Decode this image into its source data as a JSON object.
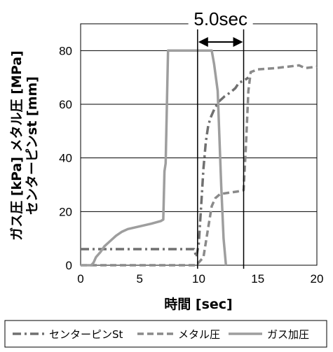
{
  "chart_data": {
    "type": "line",
    "xlabel": "時間 [sec]",
    "ylabel_line1": "ガス圧 [kPa] メタル圧 [MPa]",
    "ylabel_line2": "センターピンst [mm]",
    "xlim": [
      0,
      20
    ],
    "ylim": [
      0,
      90
    ],
    "xticks": [
      "0",
      "5",
      "10",
      "15",
      "20"
    ],
    "yticks": [
      "0",
      "20",
      "40",
      "60",
      "80"
    ],
    "grid": "horizontal",
    "legend_position": "bottom",
    "annotation": {
      "text": "5.0sec",
      "x_start": 9.9,
      "x_end": 13.8
    },
    "series": [
      {
        "name": "センターピンSt",
        "color": "#707070",
        "dash": "dashdot",
        "points": [
          [
            0,
            6
          ],
          [
            9.6,
            6
          ],
          [
            9.8,
            3
          ],
          [
            10.0,
            8
          ],
          [
            10.2,
            22
          ],
          [
            10.4,
            36
          ],
          [
            10.6,
            46
          ],
          [
            10.8,
            52
          ],
          [
            11.0,
            55
          ],
          [
            11.3,
            58
          ],
          [
            11.7,
            61
          ],
          [
            12.2,
            63
          ],
          [
            12.7,
            64.5
          ],
          [
            13.1,
            66
          ],
          [
            13.4,
            68
          ],
          [
            13.9,
            69
          ],
          [
            14.2,
            70
          ]
        ]
      },
      {
        "name": "メタル圧",
        "color": "#8a8a8a",
        "dash": "dashed",
        "points": [
          [
            0,
            0
          ],
          [
            9.8,
            0
          ],
          [
            10.4,
            3
          ],
          [
            10.8,
            14
          ],
          [
            11.1,
            22
          ],
          [
            11.4,
            25
          ],
          [
            11.8,
            26.5
          ],
          [
            12.5,
            27
          ],
          [
            13.3,
            27.5
          ],
          [
            13.8,
            28
          ],
          [
            14.0,
            45
          ],
          [
            14.2,
            65
          ],
          [
            14.4,
            72
          ],
          [
            15.0,
            73
          ],
          [
            16.5,
            73.5
          ],
          [
            18.5,
            74.5
          ],
          [
            19.0,
            73.5
          ],
          [
            20,
            74
          ]
        ]
      },
      {
        "name": "ガス加圧",
        "color": "#9e9e9e",
        "dash": "solid",
        "points": [
          [
            0,
            0
          ],
          [
            0.9,
            0
          ],
          [
            1.1,
            1
          ],
          [
            1.3,
            3
          ],
          [
            1.7,
            5
          ],
          [
            2.0,
            7
          ],
          [
            2.5,
            9
          ],
          [
            3.0,
            11
          ],
          [
            3.5,
            12.5
          ],
          [
            4.0,
            13.5
          ],
          [
            5.0,
            14.5
          ],
          [
            6.0,
            15.5
          ],
          [
            6.8,
            16.5
          ],
          [
            7.0,
            17
          ],
          [
            7.1,
            35
          ],
          [
            7.2,
            38
          ],
          [
            7.4,
            80
          ],
          [
            8.5,
            80
          ],
          [
            11.1,
            80
          ],
          [
            11.3,
            75
          ],
          [
            11.6,
            65
          ],
          [
            11.9,
            30
          ],
          [
            12.1,
            10
          ],
          [
            12.3,
            0
          ]
        ]
      }
    ]
  }
}
